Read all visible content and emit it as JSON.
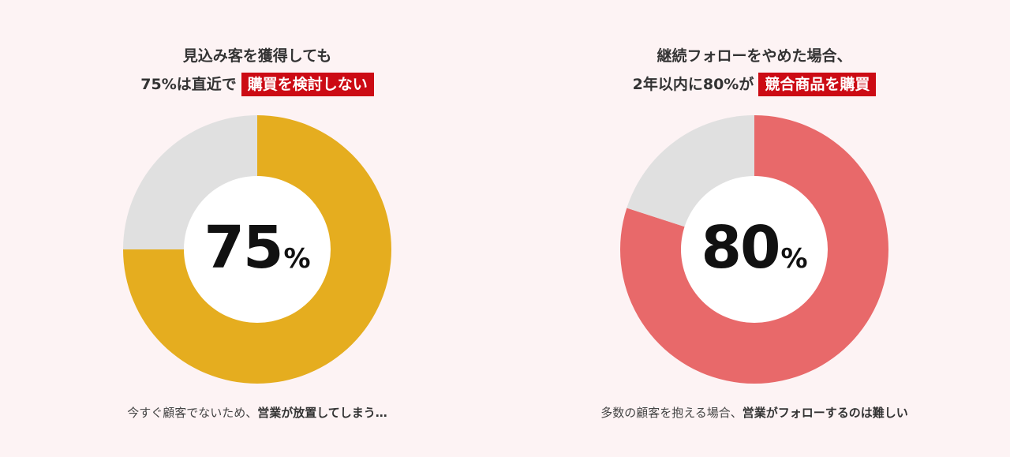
{
  "chart_data": [
    {
      "type": "pie",
      "variant": "donut",
      "title_line1": "見込み客を獲得しても",
      "title_line2_prefix": "75%は直近で",
      "title_highlight": "購買を検討しない",
      "value": 75,
      "center_value": "75",
      "center_unit": "%",
      "slices": [
        {
          "label": "",
          "value": 75,
          "color": "#e5ad1f"
        },
        {
          "label": "",
          "value": 25,
          "color": "#e0e0e0"
        }
      ],
      "caption_plain": "今すぐ顧客でないため、",
      "caption_bold": "営業が放置してしまう…"
    },
    {
      "type": "pie",
      "variant": "donut",
      "title_line1": "継続フォローをやめた場合、",
      "title_line2_prefix": "2年以内に80%が",
      "title_highlight": "競合商品を購買",
      "value": 80,
      "center_value": "80",
      "center_unit": "%",
      "slices": [
        {
          "label": "",
          "value": 80,
          "color": "#e8696a"
        },
        {
          "label": "",
          "value": 20,
          "color": "#e0e0e0"
        }
      ],
      "caption_plain": "多数の顧客を抱える場合、",
      "caption_bold": "営業がフォローするのは難しい"
    }
  ],
  "colors": {
    "background": "#fdf3f4",
    "highlight": "#cc0b14",
    "remainder": "#e0e0e0",
    "hole": "#ffffff"
  }
}
